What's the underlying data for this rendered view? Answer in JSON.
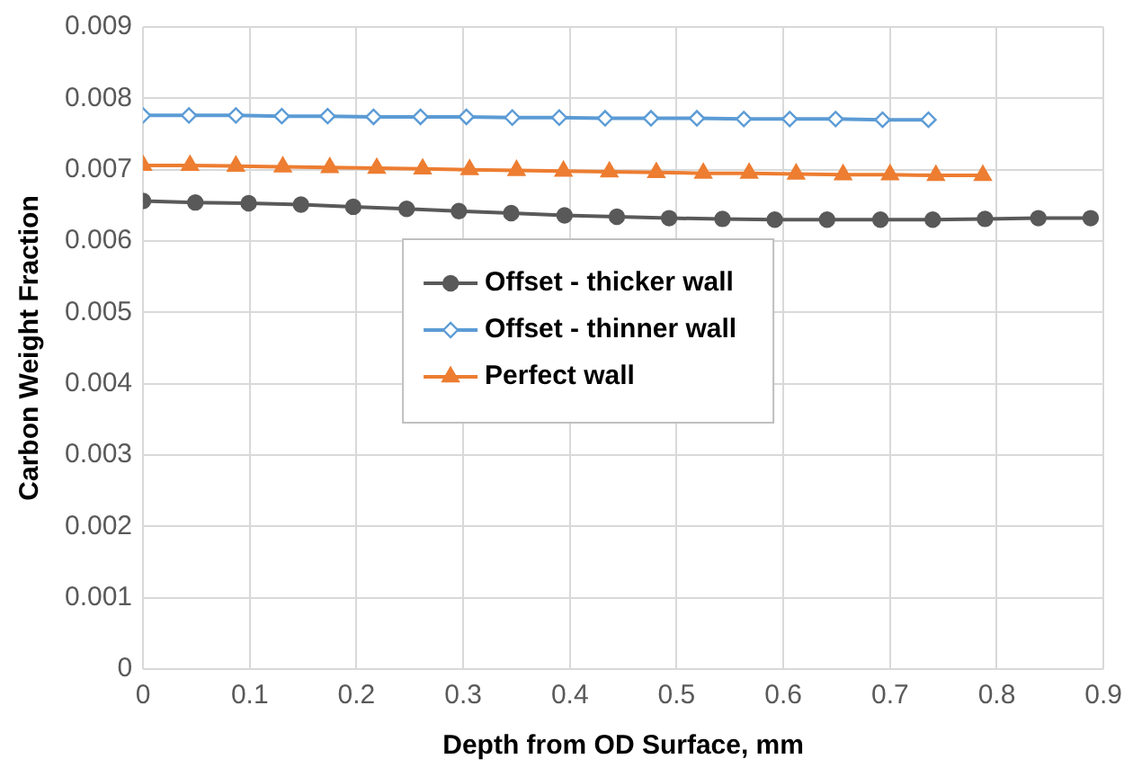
{
  "chart_data": {
    "type": "line",
    "xlabel": "Depth from OD Surface, mm",
    "ylabel": "Carbon Weight Fraction",
    "xlim": [
      0,
      0.9
    ],
    "xticks": [
      0,
      0.1,
      0.2,
      0.3,
      0.4,
      0.5,
      0.6,
      0.7,
      0.8,
      0.9
    ],
    "ylim": [
      0,
      0.009
    ],
    "yticks": [
      0,
      0.001,
      0.002,
      0.003,
      0.004,
      0.005,
      0.006,
      0.007,
      0.008,
      0.009
    ],
    "grid": true,
    "legend": "center",
    "line_style": "solid",
    "series": [
      {
        "name": "Offset - thicker wall",
        "color": "#595959",
        "marker": "circle",
        "x": [
          0,
          0.049,
          0.099,
          0.148,
          0.197,
          0.247,
          0.296,
          0.345,
          0.395,
          0.444,
          0.493,
          0.543,
          0.592,
          0.641,
          0.691,
          0.74,
          0.789,
          0.839,
          0.888
        ],
        "values": [
          0.00656,
          0.00654,
          0.00653,
          0.00651,
          0.00648,
          0.00645,
          0.00642,
          0.00639,
          0.00636,
          0.00634,
          0.00632,
          0.00631,
          0.0063,
          0.0063,
          0.0063,
          0.0063,
          0.00631,
          0.00632,
          0.00632
        ]
      },
      {
        "name": "Offset - thinner wall",
        "color": "#5b9bd5",
        "marker": "diamond",
        "x": [
          0,
          0.043,
          0.087,
          0.13,
          0.173,
          0.216,
          0.26,
          0.303,
          0.346,
          0.39,
          0.433,
          0.476,
          0.519,
          0.563,
          0.606,
          0.649,
          0.693,
          0.736
        ],
        "values": [
          0.00776,
          0.00776,
          0.00776,
          0.00775,
          0.00775,
          0.00774,
          0.00774,
          0.00774,
          0.00773,
          0.00773,
          0.00772,
          0.00772,
          0.00772,
          0.00771,
          0.00771,
          0.00771,
          0.0077,
          0.0077
        ]
      },
      {
        "name": "Perfect wall",
        "color": "#ed7d31",
        "marker": "triangle",
        "x": [
          0,
          0.044,
          0.087,
          0.131,
          0.175,
          0.219,
          0.262,
          0.306,
          0.35,
          0.394,
          0.437,
          0.481,
          0.525,
          0.568,
          0.612,
          0.656,
          0.7,
          0.743,
          0.787
        ],
        "values": [
          0.00706,
          0.00706,
          0.00705,
          0.00704,
          0.00703,
          0.00702,
          0.00701,
          0.007,
          0.00699,
          0.00698,
          0.00697,
          0.00696,
          0.00695,
          0.00695,
          0.00694,
          0.00693,
          0.00693,
          0.00692,
          0.00692
        ]
      }
    ]
  }
}
